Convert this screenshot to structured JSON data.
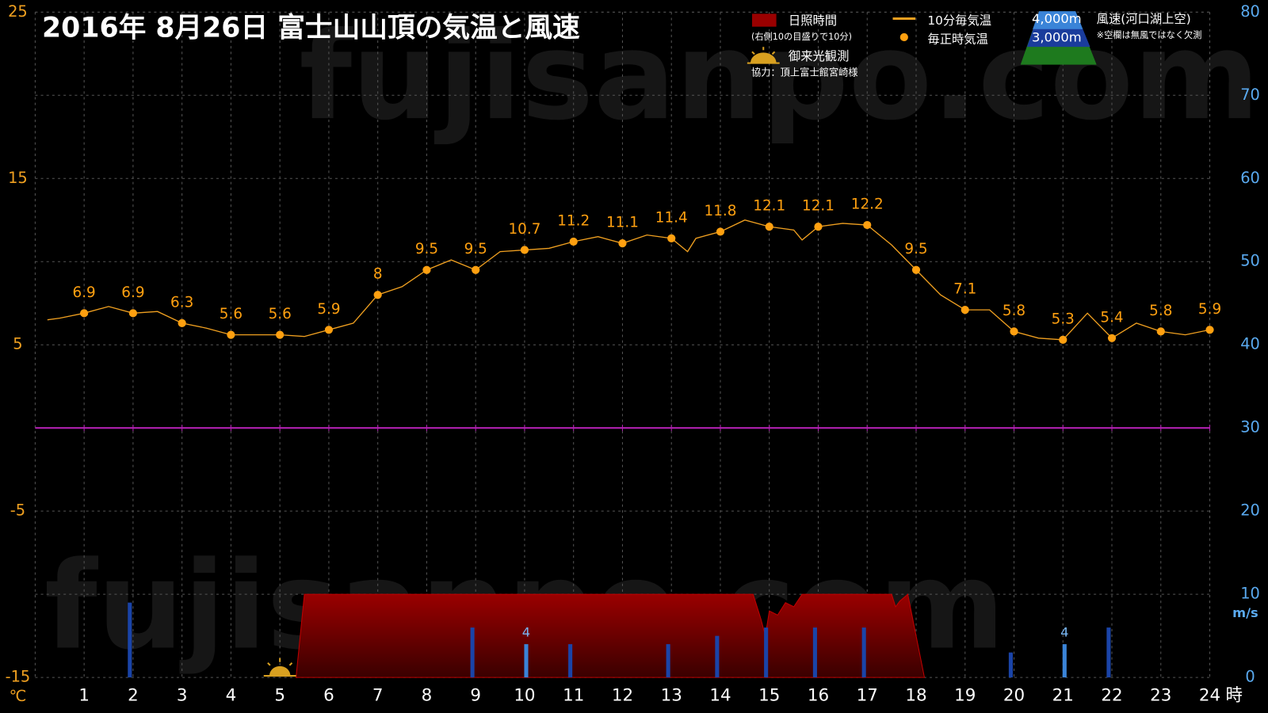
{
  "chart_data": {
    "type": "line",
    "title": "2016年  8月26日   富士山山頂の気温と風速",
    "xlim": [
      0,
      24
    ],
    "xticks": [
      1,
      2,
      3,
      4,
      5,
      6,
      7,
      8,
      9,
      10,
      11,
      12,
      13,
      14,
      15,
      16,
      17,
      18,
      19,
      20,
      21,
      22,
      23,
      24
    ],
    "x_unit": "時",
    "ylim": [
      -15,
      25
    ],
    "yticks": [
      -15,
      -5,
      5,
      15,
      25
    ],
    "y_unit": "℃",
    "y2lim": [
      0,
      80
    ],
    "y2ticks": [
      0,
      10,
      20,
      30,
      40,
      50,
      60,
      70,
      80
    ],
    "y2_unit": "m/s",
    "grid": true,
    "series": [
      {
        "name": "10分毎気温",
        "type": "line",
        "color": "#f0a020",
        "x": [
          0.25,
          0.5,
          1,
          1.5,
          2,
          2.5,
          3,
          3.5,
          4,
          4.5,
          5,
          5.5,
          6,
          6.5,
          7,
          7.5,
          8,
          8.5,
          9,
          9.5,
          10,
          10.5,
          11,
          11.5,
          12,
          12.5,
          13,
          13.33,
          13.5,
          14,
          14.5,
          15,
          15.5,
          15.67,
          16,
          16.5,
          17,
          17.5,
          18,
          18.5,
          19,
          19.5,
          20,
          20.5,
          21,
          21.5,
          22,
          22.5,
          23,
          23.5,
          24
        ],
        "values": [
          6.5,
          6.6,
          6.9,
          7.3,
          6.9,
          7.0,
          6.3,
          6.0,
          5.6,
          5.6,
          5.6,
          5.5,
          5.9,
          6.3,
          8.0,
          8.5,
          9.5,
          10.1,
          9.5,
          10.6,
          10.7,
          10.8,
          11.2,
          11.5,
          11.1,
          11.6,
          11.4,
          10.6,
          11.4,
          11.8,
          12.5,
          12.1,
          11.9,
          11.3,
          12.1,
          12.3,
          12.2,
          11.0,
          9.5,
          8.0,
          7.1,
          7.1,
          5.8,
          5.4,
          5.3,
          6.9,
          5.4,
          6.3,
          5.8,
          5.6,
          5.9
        ]
      },
      {
        "name": "毎正時気温",
        "type": "scatter",
        "color": "#ffa010",
        "data_labels": true,
        "x": [
          1,
          2,
          3,
          4,
          5,
          6,
          7,
          8,
          9,
          10,
          11,
          12,
          13,
          14,
          15,
          16,
          17,
          18,
          19,
          20,
          21,
          22,
          23,
          24
        ],
        "values": [
          6.9,
          6.9,
          6.3,
          5.6,
          5.6,
          5.9,
          8,
          9.5,
          9.5,
          10.7,
          11.2,
          11.1,
          11.4,
          11.8,
          12.1,
          12.1,
          12.2,
          9.5,
          7.1,
          5.8,
          5.3,
          5.4,
          5.8,
          5.9
        ]
      },
      {
        "name": "日照時間",
        "note": "(右側10の目盛りで10分)",
        "type": "area",
        "axis": "y2",
        "color": "#9a0000",
        "x": [
          5.33,
          5.5,
          14.67,
          14.83,
          14.92,
          15.0,
          15.17,
          15.33,
          15.5,
          15.67,
          17.5,
          17.58,
          17.67,
          17.83,
          18.17
        ],
        "values": [
          0,
          10,
          10,
          7,
          5,
          8,
          7.5,
          9,
          8.5,
          10,
          10,
          8.5,
          9.2,
          10,
          0
        ]
      },
      {
        "name": "4,000m",
        "type": "bar",
        "axis": "y2",
        "color": "#3a84d8",
        "data_labels": true,
        "x": [
          1,
          2,
          3,
          4,
          5,
          6,
          7,
          8,
          9,
          10,
          11,
          12,
          13,
          14,
          15,
          16,
          17,
          18,
          19,
          20,
          21,
          22,
          23,
          24
        ],
        "values": [
          null,
          null,
          null,
          null,
          null,
          null,
          null,
          null,
          null,
          4,
          null,
          null,
          null,
          null,
          null,
          null,
          null,
          null,
          null,
          null,
          4,
          null,
          null,
          null
        ]
      },
      {
        "name": "3,000m",
        "type": "bar",
        "axis": "y2",
        "color": "#1a44a8",
        "x": [
          1,
          2,
          3,
          4,
          5,
          6,
          7,
          8,
          9,
          10,
          11,
          12,
          13,
          14,
          15,
          16,
          17,
          18,
          19,
          20,
          21,
          22,
          23,
          24
        ],
        "values": [
          null,
          9,
          null,
          null,
          null,
          null,
          null,
          null,
          6,
          null,
          4,
          null,
          4,
          5,
          6,
          6,
          6,
          null,
          null,
          3,
          null,
          6,
          null,
          null
        ]
      }
    ],
    "wind_title": "風速(河口湖上空)",
    "wind_note": "※空欄は無風ではなく欠測",
    "sunrise": {
      "label": "御来光観測",
      "x": 5
    },
    "credit": "協力：頂上富士館宮崎様",
    "watermark": "fujisanpo.com"
  }
}
